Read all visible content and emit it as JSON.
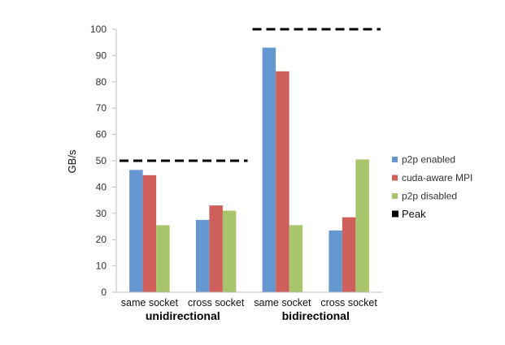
{
  "chart_data": {
    "type": "bar",
    "ylabel": "GB/s",
    "ylim": [
      0,
      100
    ],
    "yticks": [
      "0",
      "10",
      "20",
      "30",
      "40",
      "50",
      "60",
      "70",
      "80",
      "90",
      "100"
    ],
    "categories": [
      "same socket",
      "cross socket",
      "same socket",
      "cross socket"
    ],
    "groups": [
      {
        "label": "unidirectional",
        "categories": [
          0,
          1
        ],
        "peak": 50
      },
      {
        "label": "bidirectional",
        "categories": [
          2,
          3
        ],
        "peak": 100
      }
    ],
    "series": [
      {
        "name": "p2p enabled",
        "color": "#6597d1",
        "values": [
          46.5,
          27.5,
          93,
          23.5
        ]
      },
      {
        "name": "cuda-aware MPI",
        "color": "#cf5f5b",
        "values": [
          44.5,
          33,
          84,
          28.5
        ]
      },
      {
        "name": "p2p disabled",
        "color": "#a9c56b",
        "values": [
          25.5,
          31,
          25.5,
          50.5
        ]
      }
    ],
    "peak": {
      "name": "Peak",
      "color": "#000000"
    },
    "grid": false,
    "legend": "right"
  }
}
